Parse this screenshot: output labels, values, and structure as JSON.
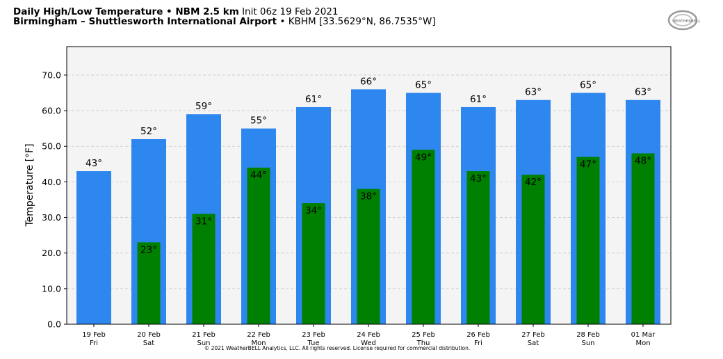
{
  "header": {
    "title_bold": "Daily High/Low Temperature • NBM 2.5 km",
    "init": "Init 06z 19 Feb 2021",
    "location_bold": "Birmingham – Shuttlesworth International Airport",
    "location_detail": "• KBHM [33.5629°N, 86.7535°W]"
  },
  "logo_text": "WEATHERBELL",
  "footer": "© 2021 WeatherBELL Analytics, LLC. All rights reserved. License required for commercial distribution.",
  "chart_data": {
    "type": "bar",
    "ylabel": "Temperature [°F]",
    "ylim": [
      0,
      78
    ],
    "yticks": [
      "0.0",
      "10.0",
      "20.0",
      "30.0",
      "40.0",
      "50.0",
      "60.0",
      "70.0"
    ],
    "grid": true,
    "categories": [
      {
        "date": "19 Feb",
        "day": "Fri"
      },
      {
        "date": "20 Feb",
        "day": "Sat"
      },
      {
        "date": "21 Feb",
        "day": "Sun"
      },
      {
        "date": "22 Feb",
        "day": "Mon"
      },
      {
        "date": "23 Feb",
        "day": "Tue"
      },
      {
        "date": "24 Feb",
        "day": "Wed"
      },
      {
        "date": "25 Feb",
        "day": "Thu"
      },
      {
        "date": "26 Feb",
        "day": "Fri"
      },
      {
        "date": "27 Feb",
        "day": "Sat"
      },
      {
        "date": "28 Feb",
        "day": "Sun"
      },
      {
        "date": "01 Mar",
        "day": "Mon"
      }
    ],
    "series": [
      {
        "color": "#2e86ef",
        "values": [
          43,
          52,
          59,
          55,
          61,
          66,
          65,
          61,
          63,
          65,
          63
        ],
        "labels": [
          "43°",
          "52°",
          "59°",
          "55°",
          "61°",
          "66°",
          "65°",
          "61°",
          "63°",
          "65°",
          "63°"
        ]
      },
      {
        "color": "#008000",
        "values": [
          null,
          23,
          31,
          44,
          34,
          38,
          49,
          43,
          42,
          47,
          48
        ],
        "labels": [
          "",
          "23°",
          "31°",
          "44°",
          "34°",
          "38°",
          "49°",
          "43°",
          "42°",
          "47°",
          "48°"
        ]
      }
    ]
  }
}
